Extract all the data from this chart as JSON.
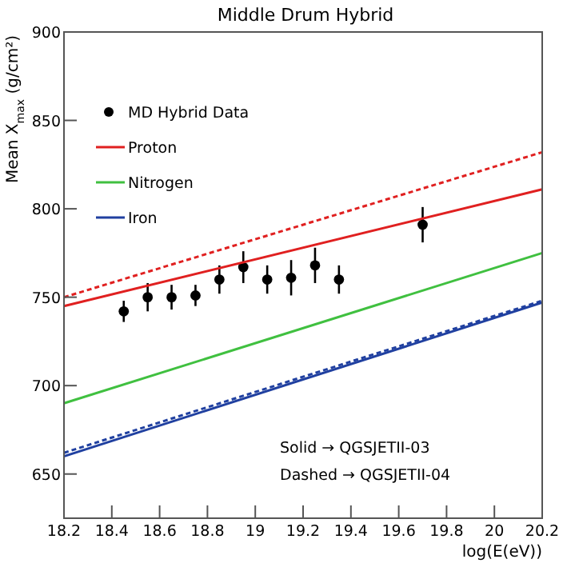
{
  "chart_data": {
    "type": "line",
    "title": "Middle Drum Hybrid",
    "xlabel": "log(E(eV))",
    "ylabel": "Mean X$_{max}$ (g/cm²)",
    "xlim": [
      18.2,
      20.2
    ],
    "xticks": [
      18.2,
      18.4,
      18.6,
      18.8,
      19,
      19.2,
      19.4,
      19.6,
      19.8,
      20,
      20.2
    ],
    "ylim": [
      625,
      900
    ],
    "yticks": [
      650,
      700,
      750,
      800,
      850,
      900
    ],
    "legend": "top left",
    "annotations": [
      "Solid → QGSJETII-03",
      "Dashed → QGSJETII-04"
    ],
    "series": [
      {
        "name": "MD Hybrid Data",
        "type": "scatter",
        "marker": "circle",
        "color": "#000000",
        "x": [
          18.45,
          18.55,
          18.65,
          18.75,
          18.85,
          18.95,
          19.05,
          19.15,
          19.25,
          19.35,
          19.7
        ],
        "values": [
          742,
          750,
          750,
          751,
          760,
          767,
          760,
          761,
          768,
          760,
          791
        ],
        "errors": [
          6,
          8,
          7,
          6,
          8,
          9,
          8,
          10,
          10,
          8,
          10
        ]
      },
      {
        "name": "Proton",
        "color": "#e02020",
        "x": [
          18.2,
          20.2
        ],
        "values": [
          745,
          811
        ],
        "line_style": "solid"
      },
      {
        "color": "#e02020",
        "x": [
          18.2,
          20.2
        ],
        "values": [
          750,
          832
        ],
        "line_style": "dashed"
      },
      {
        "name": "Nitrogen",
        "color": "#40c040",
        "x": [
          18.2,
          20.2
        ],
        "values": [
          690,
          775
        ],
        "line_style": "solid"
      },
      {
        "name": "Iron",
        "color": "#2040a0",
        "x": [
          18.2,
          20.2
        ],
        "values": [
          660,
          747
        ],
        "line_style": "solid"
      },
      {
        "color": "#2040a0",
        "x": [
          18.2,
          20.2
        ],
        "values": [
          662,
          748
        ],
        "line_style": "dashed"
      }
    ]
  }
}
